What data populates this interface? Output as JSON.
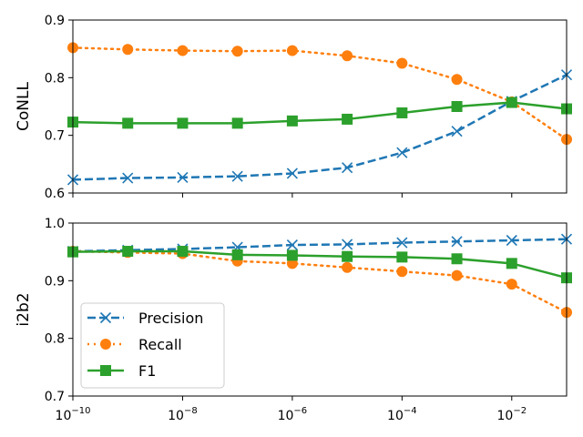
{
  "chart_data": {
    "type": "line",
    "x_scale": "log",
    "x_ticks": [
      {
        "value": 1e-10,
        "base": "10",
        "exp": "−10"
      },
      {
        "value": 1e-08,
        "base": "10",
        "exp": "−8"
      },
      {
        "value": 1e-06,
        "base": "10",
        "exp": "−6"
      },
      {
        "value": 0.0001,
        "base": "10",
        "exp": "−4"
      },
      {
        "value": 0.01,
        "base": "10",
        "exp": "−2"
      }
    ],
    "x": [
      1e-10,
      1e-09,
      1e-08,
      1e-07,
      1e-06,
      1e-05,
      0.0001,
      0.001,
      0.01,
      0.1
    ],
    "xlim": [
      1e-10,
      0.1
    ],
    "legend_placement": "lower-left of bottom panel",
    "colors": {
      "Precision": "#1f77b4",
      "Recall": "#ff7f0e",
      "F1": "#2ca02c"
    },
    "panels": [
      {
        "ylabel": "CoNLL",
        "ylim": [
          0.6,
          0.9
        ],
        "y_ticks": [
          "0.6",
          "0.7",
          "0.8",
          "0.9"
        ],
        "series": [
          {
            "name": "Precision",
            "values": [
              0.623,
              0.626,
              0.627,
              0.629,
              0.634,
              0.644,
              0.67,
              0.707,
              0.759,
              0.805
            ]
          },
          {
            "name": "Recall",
            "values": [
              0.852,
              0.849,
              0.847,
              0.846,
              0.847,
              0.838,
              0.825,
              0.797,
              0.758,
              0.693
            ]
          },
          {
            "name": "F1",
            "values": [
              0.723,
              0.721,
              0.721,
              0.721,
              0.725,
              0.728,
              0.739,
              0.75,
              0.757,
              0.746
            ]
          }
        ]
      },
      {
        "ylabel": "i2b2",
        "ylim": [
          0.7,
          1.0
        ],
        "y_ticks": [
          "0.7",
          "0.8",
          "0.9",
          "1.0"
        ],
        "series": [
          {
            "name": "Precision",
            "values": [
              0.951,
              0.953,
              0.955,
              0.958,
              0.962,
              0.963,
              0.966,
              0.968,
              0.97,
              0.972
            ]
          },
          {
            "name": "Recall",
            "values": [
              0.951,
              0.949,
              0.947,
              0.934,
              0.93,
              0.923,
              0.916,
              0.909,
              0.894,
              0.845
            ]
          },
          {
            "name": "F1",
            "values": [
              0.95,
              0.951,
              0.951,
              0.945,
              0.944,
              0.942,
              0.941,
              0.938,
              0.93,
              0.905
            ]
          }
        ]
      }
    ],
    "legend": [
      "Precision",
      "Recall",
      "F1"
    ]
  }
}
